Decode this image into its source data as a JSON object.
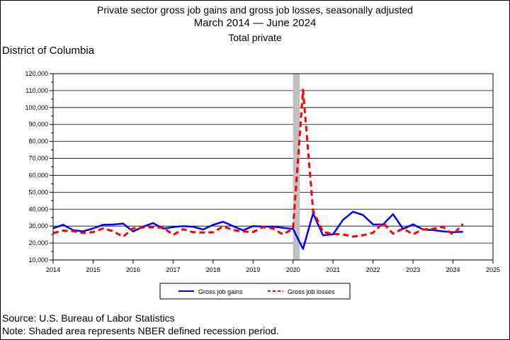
{
  "header": {
    "line1": "Private sector gross job gains and gross job losses, seasonally adjusted",
    "line2": "March 2014 — June 2024",
    "line3": "Total private"
  },
  "region": "District of Columbia",
  "footer": {
    "source": "Source: U.S. Bureau of Labor Statistics",
    "note": "Note: Shaded area represents NBER defined recession period."
  },
  "chart_data": {
    "type": "line",
    "title": "",
    "xlabel": "",
    "ylabel": "",
    "xlim": [
      2014,
      2025
    ],
    "ylim": [
      10000,
      120000
    ],
    "x_ticks": [
      "2014",
      "2015",
      "2016",
      "2017",
      "2018",
      "2019",
      "2020",
      "2021",
      "2022",
      "2023",
      "2024",
      "2025"
    ],
    "y_ticks": [
      "10,000",
      "20,000",
      "30,000",
      "40,000",
      "50,000",
      "60,000",
      "70,000",
      "80,000",
      "90,000",
      "100,000",
      "110,000",
      "120,000"
    ],
    "grid": true,
    "legend": "bottom",
    "recession": [
      2020.0,
      2020.17
    ],
    "series": [
      {
        "name": "Gross job gains",
        "color": "#0000ff",
        "style": "solid",
        "x": [
          2014.0,
          2014.25,
          2014.5,
          2014.75,
          2015.0,
          2015.25,
          2015.5,
          2015.75,
          2016.0,
          2016.25,
          2016.5,
          2016.75,
          2017.0,
          2017.25,
          2017.5,
          2017.75,
          2018.0,
          2018.25,
          2018.5,
          2018.75,
          2019.0,
          2019.25,
          2019.5,
          2019.75,
          2020.0,
          2020.25,
          2020.5,
          2020.75,
          2021.0,
          2021.25,
          2021.5,
          2021.75,
          2022.0,
          2022.25,
          2022.5,
          2022.75,
          2023.0,
          2023.25,
          2023.5,
          2023.75,
          2024.0,
          2024.25
        ],
        "values": [
          28700,
          30800,
          27600,
          26900,
          28600,
          30800,
          30900,
          31500,
          26800,
          29600,
          31800,
          28500,
          29400,
          30000,
          29600,
          28000,
          30700,
          32600,
          30000,
          27500,
          30000,
          29700,
          29700,
          29000,
          28300,
          16500,
          37500,
          24500,
          25200,
          33700,
          38500,
          36500,
          31000,
          30900,
          37000,
          28300,
          31000,
          28000,
          27600,
          26900,
          26400,
          26600
        ]
      },
      {
        "name": "Gross job losses",
        "color": "#ff0000",
        "style": "dashed",
        "x": [
          2014.0,
          2014.25,
          2014.5,
          2014.75,
          2015.0,
          2015.25,
          2015.5,
          2015.75,
          2016.0,
          2016.25,
          2016.5,
          2016.75,
          2017.0,
          2017.25,
          2017.5,
          2017.75,
          2018.0,
          2018.25,
          2018.5,
          2018.75,
          2019.0,
          2019.25,
          2019.5,
          2019.75,
          2020.0,
          2020.25,
          2020.5,
          2020.75,
          2021.0,
          2021.25,
          2021.5,
          2021.75,
          2022.0,
          2022.25,
          2022.5,
          2022.75,
          2023.0,
          2023.25,
          2023.5,
          2023.75,
          2024.0,
          2024.25
        ],
        "values": [
          25800,
          27300,
          27000,
          25900,
          26500,
          28600,
          27000,
          23700,
          28700,
          29200,
          29300,
          29100,
          24800,
          28200,
          26400,
          26200,
          26300,
          29800,
          27700,
          26800,
          26500,
          29400,
          28600,
          25000,
          28500,
          110500,
          39000,
          26500,
          25300,
          25100,
          23800,
          24600,
          26000,
          31900,
          25500,
          28500,
          25200,
          28000,
          28400,
          29500,
          25000,
          31300
        ]
      }
    ]
  }
}
